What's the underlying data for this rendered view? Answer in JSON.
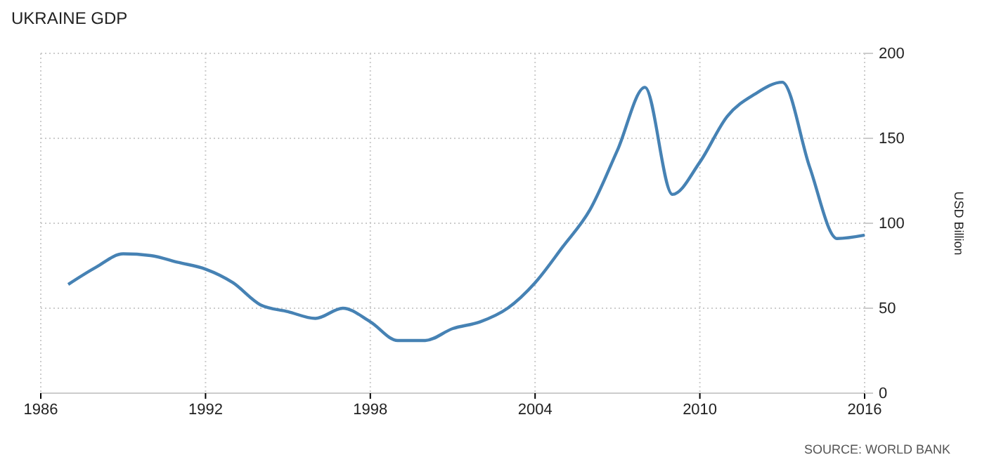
{
  "chart_data": {
    "type": "line",
    "title": "UKRAINE GDP",
    "ylabel": "USD Billion",
    "annotations": [
      "SOURCE: WORLD BANK"
    ],
    "x": [
      1987,
      1988,
      1989,
      1990,
      1991,
      1992,
      1993,
      1994,
      1995,
      1996,
      1997,
      1998,
      1999,
      2000,
      2001,
      2002,
      2003,
      2004,
      2005,
      2006,
      2007,
      2008,
      2009,
      2010,
      2011,
      2012,
      2013,
      2014,
      2015,
      2016
    ],
    "series": [
      {
        "color": "#4682b4",
        "values": [
          64,
          74,
          82,
          81,
          77,
          73,
          65,
          52,
          48,
          44,
          50,
          42,
          31,
          31,
          38,
          42,
          50,
          65,
          86,
          108,
          143,
          180,
          117,
          136,
          163,
          176,
          183,
          133,
          91,
          93
        ]
      }
    ],
    "xlim": [
      1986,
      2016
    ],
    "xticks": [
      1986,
      1992,
      1998,
      2004,
      2010,
      2016
    ],
    "ylim": [
      0,
      200
    ],
    "yticks": [
      0,
      50,
      100,
      150,
      200
    ],
    "grid": true,
    "marker": "none",
    "line_style": "solid"
  }
}
